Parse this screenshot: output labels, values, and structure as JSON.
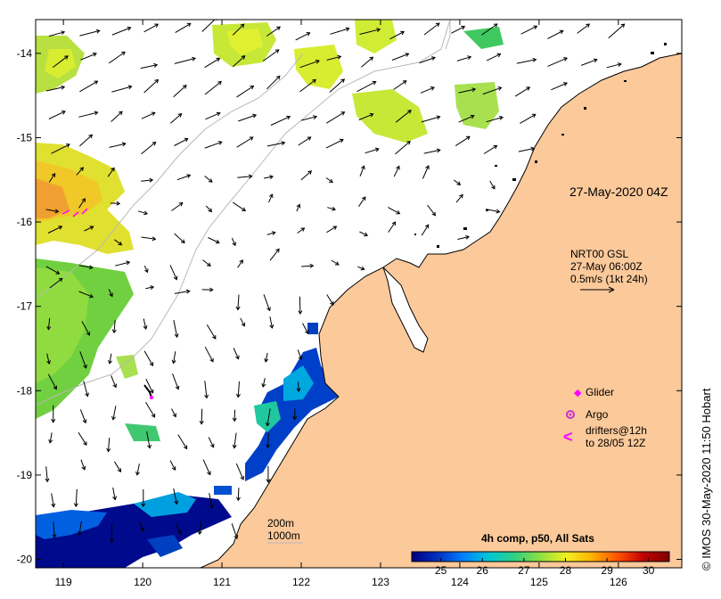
{
  "map": {
    "x_ticks": [
      "119",
      "120",
      "121",
      "122",
      "123",
      "124",
      "125",
      "126"
    ],
    "y_ticks": [
      "-14",
      "-15",
      "-16",
      "-17",
      "-18",
      "-19",
      "-20"
    ],
    "extent": {
      "lon": [
        118.65,
        126.8
      ],
      "lat": [
        -20.1,
        -13.6
      ]
    },
    "colors": {
      "land": "#fbc99a",
      "coast": "#000000",
      "isobath": "#b8b8b8",
      "arrow": "#000000",
      "glider": "#ff00ff",
      "argo": "#cc33cc"
    }
  },
  "annotations": {
    "date": "27-May-2020 04Z",
    "current_source": "NRT00 GSL",
    "current_time": "27-May 06:00Z",
    "current_scale": "0.5m/s (1kt 24h)"
  },
  "legend": {
    "glider": "Glider",
    "argo": "Argo",
    "drifters_line1": "drifters@12h",
    "drifters_line2": "to 28/05 12Z",
    "drifter_symbol": "<"
  },
  "isobaths": {
    "label_200": "200m",
    "label_1000": "1000m"
  },
  "colorbar": {
    "title": "4h comp, p50, All Sats",
    "ticks": [
      "25",
      "26",
      "27",
      "28",
      "29",
      "30"
    ],
    "range": [
      24.3,
      30.5
    ],
    "gradient": [
      "#000080",
      "#0030c0",
      "#0080ff",
      "#00c8d8",
      "#30d080",
      "#90e040",
      "#f0f020",
      "#ffb000",
      "#ff5000",
      "#c00000",
      "#800000"
    ]
  },
  "credit": "© IMOS 30-May-2020 11:50 Hobart"
}
